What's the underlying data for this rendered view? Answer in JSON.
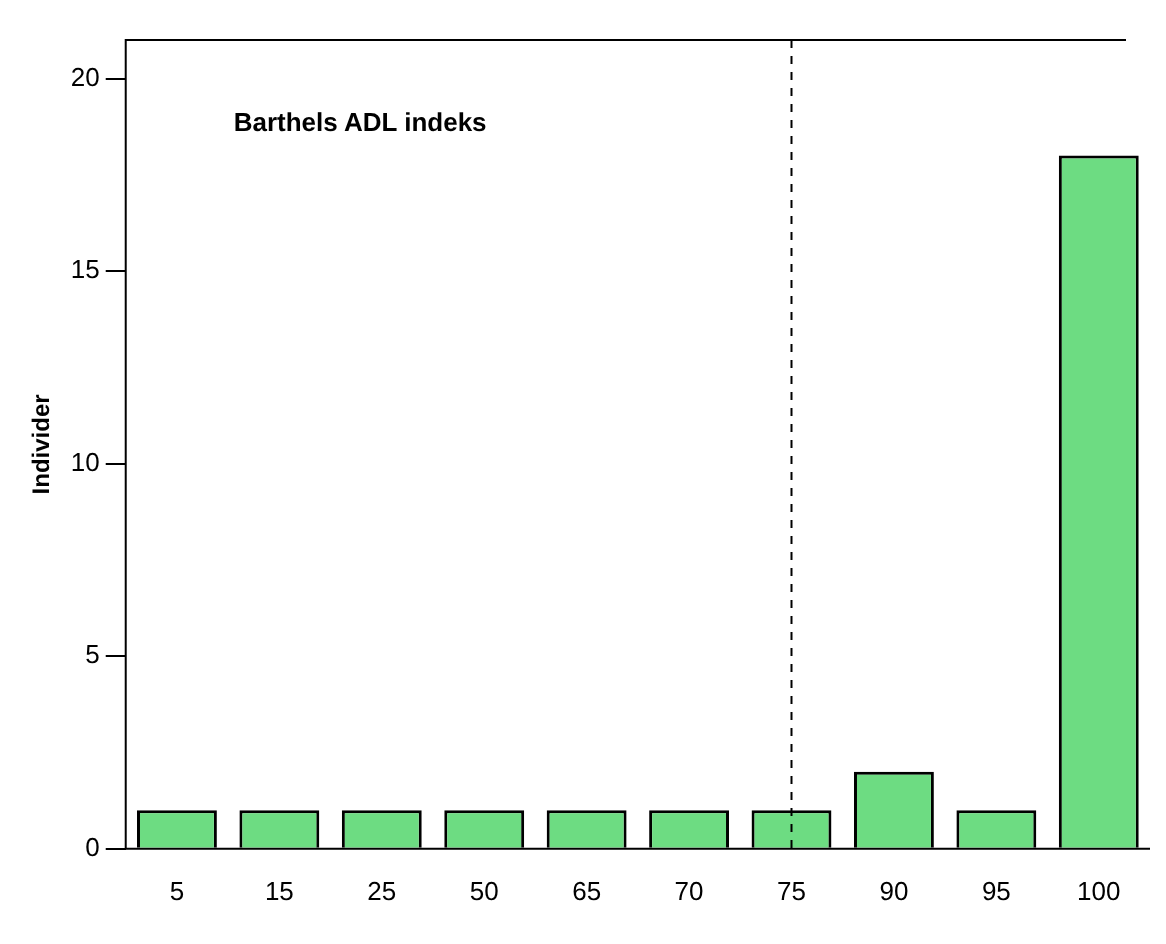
{
  "chart_data": {
    "type": "bar",
    "title": "Barthels ADL indeks",
    "ylabel": "Individer",
    "categories": [
      "5",
      "15",
      "25",
      "50",
      "65",
      "70",
      "75",
      "90",
      "95",
      "100"
    ],
    "values": [
      1,
      1,
      1,
      1,
      1,
      1,
      1,
      2,
      1,
      18
    ],
    "color": "#6ddc82",
    "ylim": [
      0,
      21
    ],
    "yticks": [
      0,
      5,
      10,
      15,
      20
    ],
    "grid": false,
    "legend": false,
    "ref_lines": [
      {
        "axis": "x",
        "value": "75",
        "line_style": "dashed",
        "color": "#000000"
      }
    ]
  }
}
